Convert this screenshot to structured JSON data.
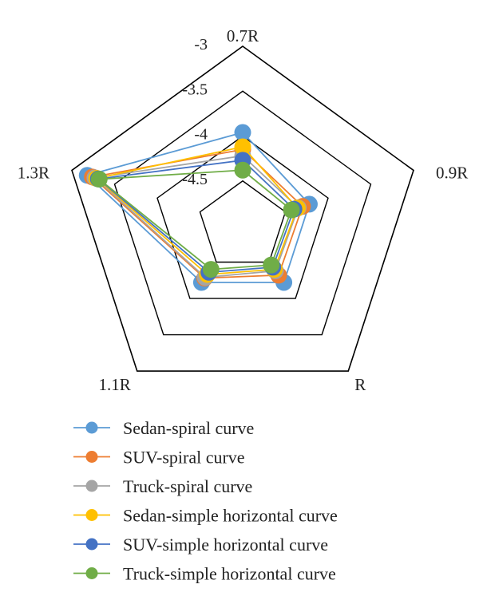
{
  "chart_data": {
    "type": "radar",
    "axes": [
      "0.7R",
      "0.9R",
      "R",
      "1.1R",
      "1.3R"
    ],
    "rlim": [
      -5,
      -3
    ],
    "ticks": [
      -3,
      -3.5,
      -4,
      -4.5
    ],
    "tick_labels": [
      "-3",
      "-3.5",
      "-4",
      "-4.5"
    ],
    "grid": true,
    "legend_position": "bottom",
    "series": [
      {
        "name": "Sedan-spiral curve",
        "color": "#5b9bd5",
        "values": [
          -3.96,
          -4.22,
          -4.22,
          -4.22,
          -3.18
        ]
      },
      {
        "name": "SUV-spiral curve",
        "color": "#ed7d31",
        "values": [
          -4.15,
          -4.3,
          -4.32,
          -4.28,
          -3.24
        ]
      },
      {
        "name": "Truck-spiral curve",
        "color": "#a5a5a5",
        "values": [
          -4.22,
          -4.35,
          -4.38,
          -4.29,
          -3.27
        ]
      },
      {
        "name": "Sedan-simple horizontal curve",
        "color": "#ffc000",
        "values": [
          -4.12,
          -4.36,
          -4.4,
          -4.33,
          -3.29
        ]
      },
      {
        "name": "SUV-simple horizontal curve",
        "color": "#4472c4",
        "values": [
          -4.27,
          -4.4,
          -4.43,
          -4.36,
          -3.31
        ]
      },
      {
        "name": "Truck-simple horizontal curve",
        "color": "#70ad47",
        "values": [
          -4.38,
          -4.43,
          -4.46,
          -4.4,
          -3.32
        ]
      }
    ]
  }
}
